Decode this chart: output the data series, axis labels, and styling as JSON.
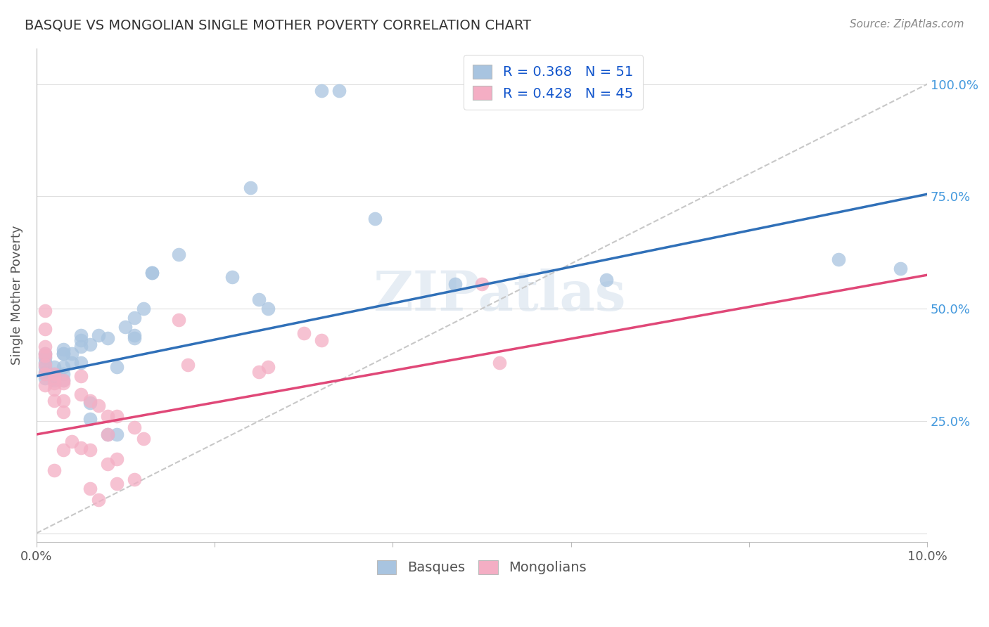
{
  "title": "BASQUE VS MONGOLIAN SINGLE MOTHER POVERTY CORRELATION CHART",
  "source": "Source: ZipAtlas.com",
  "ylabel": "Single Mother Poverty",
  "xlim": [
    0.0,
    0.1
  ],
  "ylim": [
    -0.02,
    1.08
  ],
  "basque_R": 0.368,
  "basque_N": 51,
  "mongolian_R": 0.428,
  "mongolian_N": 45,
  "basque_color": "#a8c4e0",
  "mongolian_color": "#f4aec4",
  "basque_line_color": "#3070b8",
  "mongolian_line_color": "#e04878",
  "ref_line_color": "#c8c8c8",
  "watermark": "ZIPatlas",
  "basque_line_x0": 0.0,
  "basque_line_y0": 0.35,
  "basque_line_x1": 0.1,
  "basque_line_y1": 0.755,
  "mongolian_line_x0": 0.0,
  "mongolian_line_y0": 0.22,
  "mongolian_line_x1": 0.1,
  "mongolian_line_y1": 0.575,
  "basque_x": [
    0.032,
    0.034,
    0.024,
    0.038,
    0.016,
    0.022,
    0.025,
    0.026,
    0.013,
    0.013,
    0.01,
    0.011,
    0.012,
    0.011,
    0.011,
    0.008,
    0.009,
    0.008,
    0.009,
    0.006,
    0.007,
    0.006,
    0.006,
    0.005,
    0.005,
    0.005,
    0.004,
    0.004,
    0.005,
    0.003,
    0.003,
    0.003,
    0.003,
    0.003,
    0.003,
    0.002,
    0.002,
    0.002,
    0.002,
    0.002,
    0.001,
    0.001,
    0.001,
    0.001,
    0.001,
    0.001,
    0.001,
    0.047,
    0.064,
    0.09,
    0.097
  ],
  "basque_y": [
    0.985,
    0.985,
    0.77,
    0.7,
    0.62,
    0.57,
    0.52,
    0.5,
    0.58,
    0.58,
    0.46,
    0.48,
    0.5,
    0.44,
    0.435,
    0.435,
    0.37,
    0.22,
    0.22,
    0.42,
    0.44,
    0.29,
    0.255,
    0.43,
    0.44,
    0.38,
    0.38,
    0.4,
    0.415,
    0.4,
    0.41,
    0.4,
    0.37,
    0.355,
    0.34,
    0.37,
    0.355,
    0.35,
    0.345,
    0.34,
    0.4,
    0.39,
    0.38,
    0.37,
    0.36,
    0.355,
    0.345,
    0.555,
    0.565,
    0.61,
    0.59
  ],
  "mongolian_x": [
    0.05,
    0.052,
    0.03,
    0.032,
    0.026,
    0.025,
    0.016,
    0.017,
    0.011,
    0.012,
    0.011,
    0.009,
    0.009,
    0.009,
    0.008,
    0.008,
    0.008,
    0.007,
    0.007,
    0.006,
    0.006,
    0.006,
    0.005,
    0.005,
    0.005,
    0.004,
    0.003,
    0.003,
    0.003,
    0.003,
    0.003,
    0.002,
    0.002,
    0.002,
    0.002,
    0.002,
    0.002,
    0.001,
    0.001,
    0.001,
    0.001,
    0.001,
    0.001,
    0.001,
    0.001
  ],
  "mongolian_y": [
    0.555,
    0.38,
    0.445,
    0.43,
    0.37,
    0.36,
    0.475,
    0.375,
    0.235,
    0.21,
    0.12,
    0.26,
    0.165,
    0.11,
    0.26,
    0.22,
    0.155,
    0.075,
    0.285,
    0.295,
    0.185,
    0.1,
    0.35,
    0.31,
    0.19,
    0.205,
    0.34,
    0.335,
    0.295,
    0.27,
    0.185,
    0.355,
    0.345,
    0.335,
    0.32,
    0.295,
    0.14,
    0.495,
    0.455,
    0.415,
    0.4,
    0.395,
    0.375,
    0.355,
    0.33
  ],
  "y_ticks": [
    0.0,
    0.25,
    0.5,
    0.75,
    1.0
  ],
  "y_tick_labels_right": [
    "",
    "25.0%",
    "50.0%",
    "75.0%",
    "100.0%"
  ],
  "x_ticks": [
    0.0,
    0.02,
    0.04,
    0.06,
    0.08,
    0.1
  ],
  "x_tick_labels": [
    "0.0%",
    "",
    "",
    "",
    "",
    "10.0%"
  ],
  "grid_color": "#e0e0e0",
  "tick_color": "#4499dd",
  "label_color": "#555555"
}
